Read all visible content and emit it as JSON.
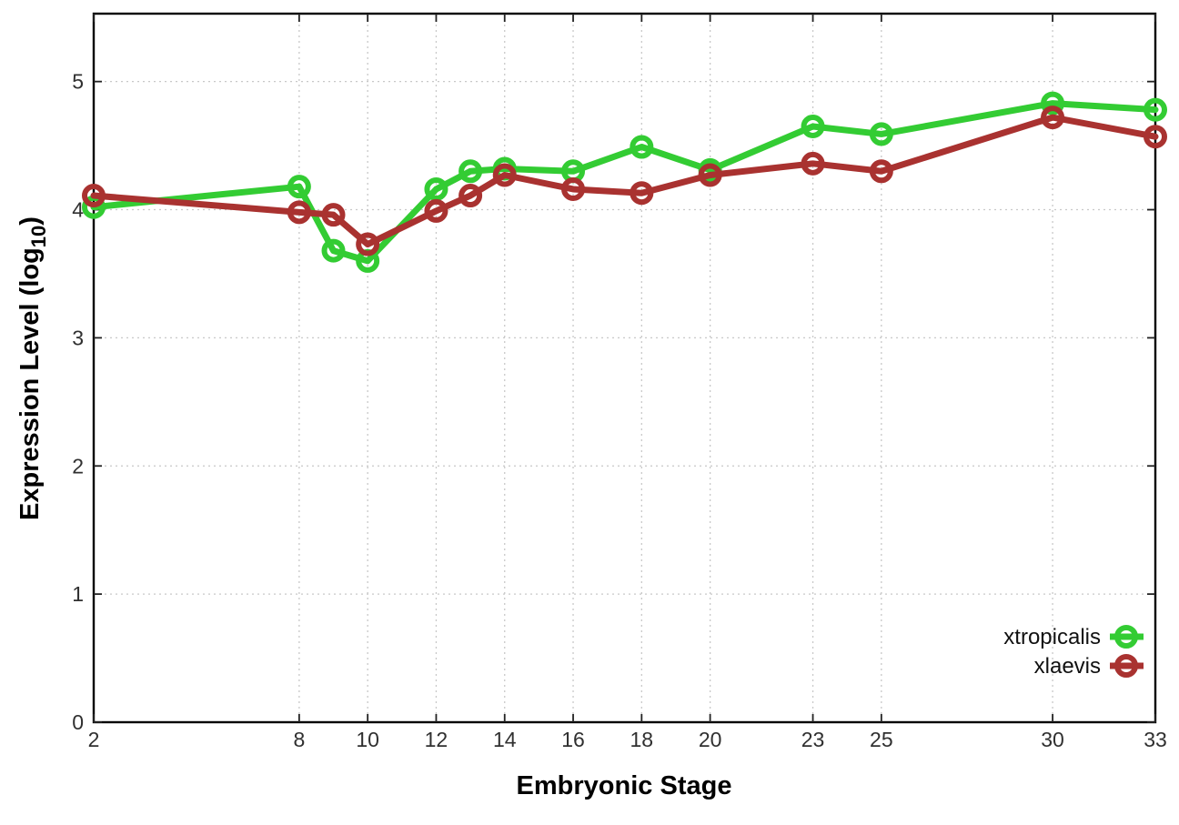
{
  "chart_data": {
    "type": "line",
    "title": "",
    "xlabel": "Embryonic Stage",
    "ylabel": "Expression Level (log10)",
    "ylabel_parts": {
      "pre": "Expression Level (log",
      "sub": "10",
      "post": ")"
    },
    "x": [
      2,
      8,
      9,
      10,
      12,
      13,
      14,
      16,
      18,
      20,
      23,
      25,
      30,
      33
    ],
    "xticks": [
      2,
      8,
      10,
      12,
      14,
      16,
      18,
      20,
      23,
      25,
      30,
      33
    ],
    "yticks": [
      0,
      1,
      2,
      3,
      4,
      5
    ],
    "xlim": [
      2,
      33
    ],
    "ylim": [
      0,
      5.53
    ],
    "grid": true,
    "legend_position": "inside-right-bottom",
    "marker": "open-circle",
    "series": [
      {
        "name": "xtropicalis",
        "color": "#33cc33",
        "values": [
          4.02,
          4.18,
          3.68,
          3.6,
          4.16,
          4.3,
          4.32,
          4.3,
          4.49,
          4.31,
          4.65,
          4.59,
          4.83,
          4.78
        ]
      },
      {
        "name": "xlaevis",
        "color": "#a93230",
        "values": [
          4.11,
          3.98,
          3.96,
          3.73,
          3.99,
          4.11,
          4.27,
          4.16,
          4.13,
          4.27,
          4.36,
          4.3,
          4.72,
          4.57
        ]
      }
    ],
    "colors": {
      "grid": "#c8c8c8",
      "border": "#000000",
      "tick_text": "#303030"
    }
  }
}
